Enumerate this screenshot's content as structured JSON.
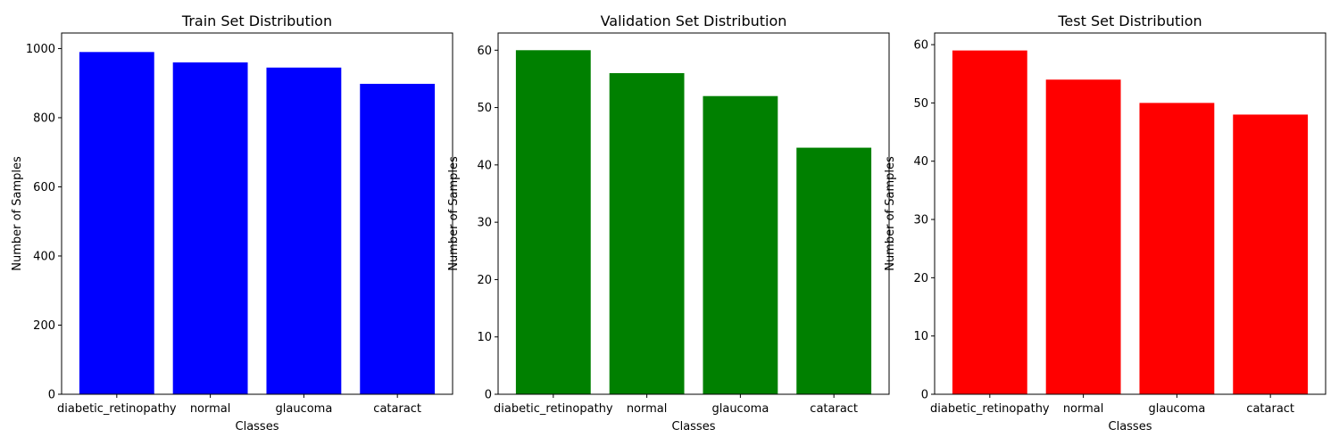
{
  "chart_data": [
    {
      "type": "bar",
      "title": "Train Set Distribution",
      "xlabel": "Classes",
      "ylabel": "Number of Samples",
      "categories": [
        "diabetic_retinopathy",
        "normal",
        "glaucoma",
        "cataract"
      ],
      "values": [
        990,
        960,
        945,
        898
      ],
      "ylim": [
        0,
        1045
      ],
      "yticks": [
        0,
        200,
        400,
        600,
        800,
        1000
      ],
      "color": "#0000ff",
      "grid": false
    },
    {
      "type": "bar",
      "title": "Validation Set Distribution",
      "xlabel": "Classes",
      "ylabel": "Number of Samples",
      "categories": [
        "diabetic_retinopathy",
        "normal",
        "glaucoma",
        "cataract"
      ],
      "values": [
        60,
        56,
        52,
        43
      ],
      "ylim": [
        0,
        63
      ],
      "yticks": [
        0,
        10,
        20,
        30,
        40,
        50,
        60
      ],
      "color": "#008000",
      "grid": false
    },
    {
      "type": "bar",
      "title": "Test Set Distribution",
      "xlabel": "Classes",
      "ylabel": "Number of Samples",
      "categories": [
        "diabetic_retinopathy",
        "normal",
        "glaucoma",
        "cataract"
      ],
      "values": [
        59,
        54,
        50,
        48
      ],
      "ylim": [
        0,
        62
      ],
      "yticks": [
        0,
        10,
        20,
        30,
        40,
        50,
        60
      ],
      "color": "#ff0000",
      "grid": false
    }
  ]
}
